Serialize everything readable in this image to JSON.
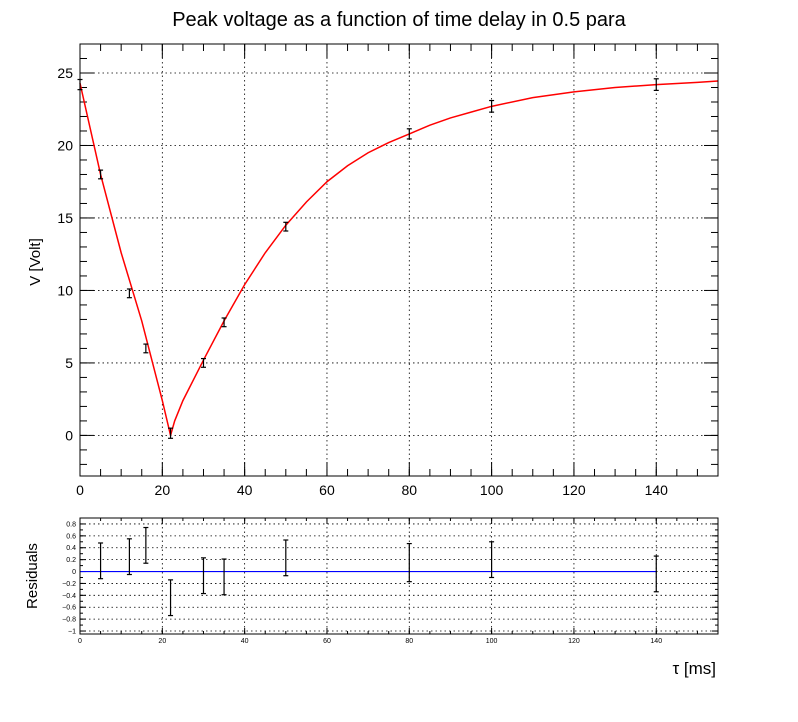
{
  "chart_data": [
    {
      "type": "scatter",
      "title": "Peak voltage as a function of time delay in 0.5 para",
      "xlabel": "τ [ms]",
      "ylabel": "V [Volt]",
      "xlim": [
        0,
        155
      ],
      "ylim": [
        -2.8,
        27
      ],
      "grid": true,
      "x_ticks": [
        0,
        20,
        40,
        60,
        80,
        100,
        120,
        140
      ],
      "y_ticks": [
        0,
        5,
        10,
        15,
        20,
        25
      ],
      "x_tick_labels": [
        "0",
        "20",
        "40",
        "60",
        "80",
        "100",
        "120",
        "140"
      ],
      "y_tick_labels": [
        "0",
        "5",
        "10",
        "15",
        "20",
        "25"
      ],
      "series": [
        {
          "points": [
            {
              "x": 0,
              "y": 24.2,
              "err": 0.35
            },
            {
              "x": 5,
              "y": 18.0,
              "err": 0.3
            },
            {
              "x": 12,
              "y": 9.8,
              "err": 0.3
            },
            {
              "x": 16,
              "y": 6.0,
              "err": 0.3
            },
            {
              "x": 22,
              "y": 0.15,
              "err": 0.35
            },
            {
              "x": 30,
              "y": 5.0,
              "err": 0.3
            },
            {
              "x": 35,
              "y": 7.8,
              "err": 0.3
            },
            {
              "x": 50,
              "y": 14.4,
              "err": 0.3
            },
            {
              "x": 80,
              "y": 20.8,
              "err": 0.35
            },
            {
              "x": 100,
              "y": 22.7,
              "err": 0.4
            },
            {
              "x": 140,
              "y": 24.2,
              "err": 0.4
            }
          ]
        }
      ],
      "fit": {
        "color": "#ff0000",
        "x": [
          0,
          5,
          10,
          15,
          20,
          22,
          23,
          25,
          30,
          35,
          40,
          45,
          50,
          55,
          60,
          65,
          70,
          75,
          80,
          85,
          90,
          95,
          100,
          110,
          120,
          130,
          140,
          150,
          155
        ],
        "y": [
          24.3,
          18.0,
          12.6,
          7.9,
          2.4,
          0.0,
          1.0,
          2.4,
          5.2,
          7.9,
          10.4,
          12.6,
          14.5,
          16.1,
          17.5,
          18.6,
          19.5,
          20.2,
          20.8,
          21.4,
          21.9,
          22.3,
          22.7,
          23.3,
          23.7,
          24.0,
          24.2,
          24.35,
          24.45
        ]
      }
    },
    {
      "type": "scatter",
      "title": "",
      "xlabel": "τ [ms]",
      "ylabel": "Residuals",
      "xlim": [
        0,
        155
      ],
      "ylim": [
        -1.05,
        0.9
      ],
      "grid": true,
      "x_ticks": [
        0,
        20,
        40,
        60,
        80,
        100,
        120,
        140
      ],
      "y_ticks": [
        -1,
        -0.8,
        -0.6,
        -0.4,
        -0.2,
        0,
        0.2,
        0.4,
        0.6,
        0.8
      ],
      "x_tick_labels": [
        "0",
        "20",
        "40",
        "60",
        "80",
        "100",
        "120",
        "140"
      ],
      "y_tick_labels": [
        "−1",
        "−0.8",
        "−0.6",
        "−0.4",
        "−0.2",
        "0",
        "0.2",
        "0.4",
        "0.6",
        "0.8"
      ],
      "series": [
        {
          "points": [
            {
              "x": 5,
              "y": 0.18,
              "err": 0.3
            },
            {
              "x": 12,
              "y": 0.25,
              "err": 0.3
            },
            {
              "x": 16,
              "y": 0.44,
              "err": 0.3
            },
            {
              "x": 22,
              "y": -0.44,
              "err": 0.3
            },
            {
              "x": 30,
              "y": -0.07,
              "err": 0.3
            },
            {
              "x": 35,
              "y": -0.09,
              "err": 0.3
            },
            {
              "x": 50,
              "y": 0.23,
              "err": 0.3
            },
            {
              "x": 80,
              "y": 0.15,
              "err": 0.32
            },
            {
              "x": 100,
              "y": 0.2,
              "err": 0.3
            },
            {
              "x": 140,
              "y": -0.04,
              "err": 0.3
            }
          ]
        }
      ],
      "zero_line_color": "#0000ff",
      "zero_line_xrange": [
        0,
        140
      ]
    }
  ]
}
